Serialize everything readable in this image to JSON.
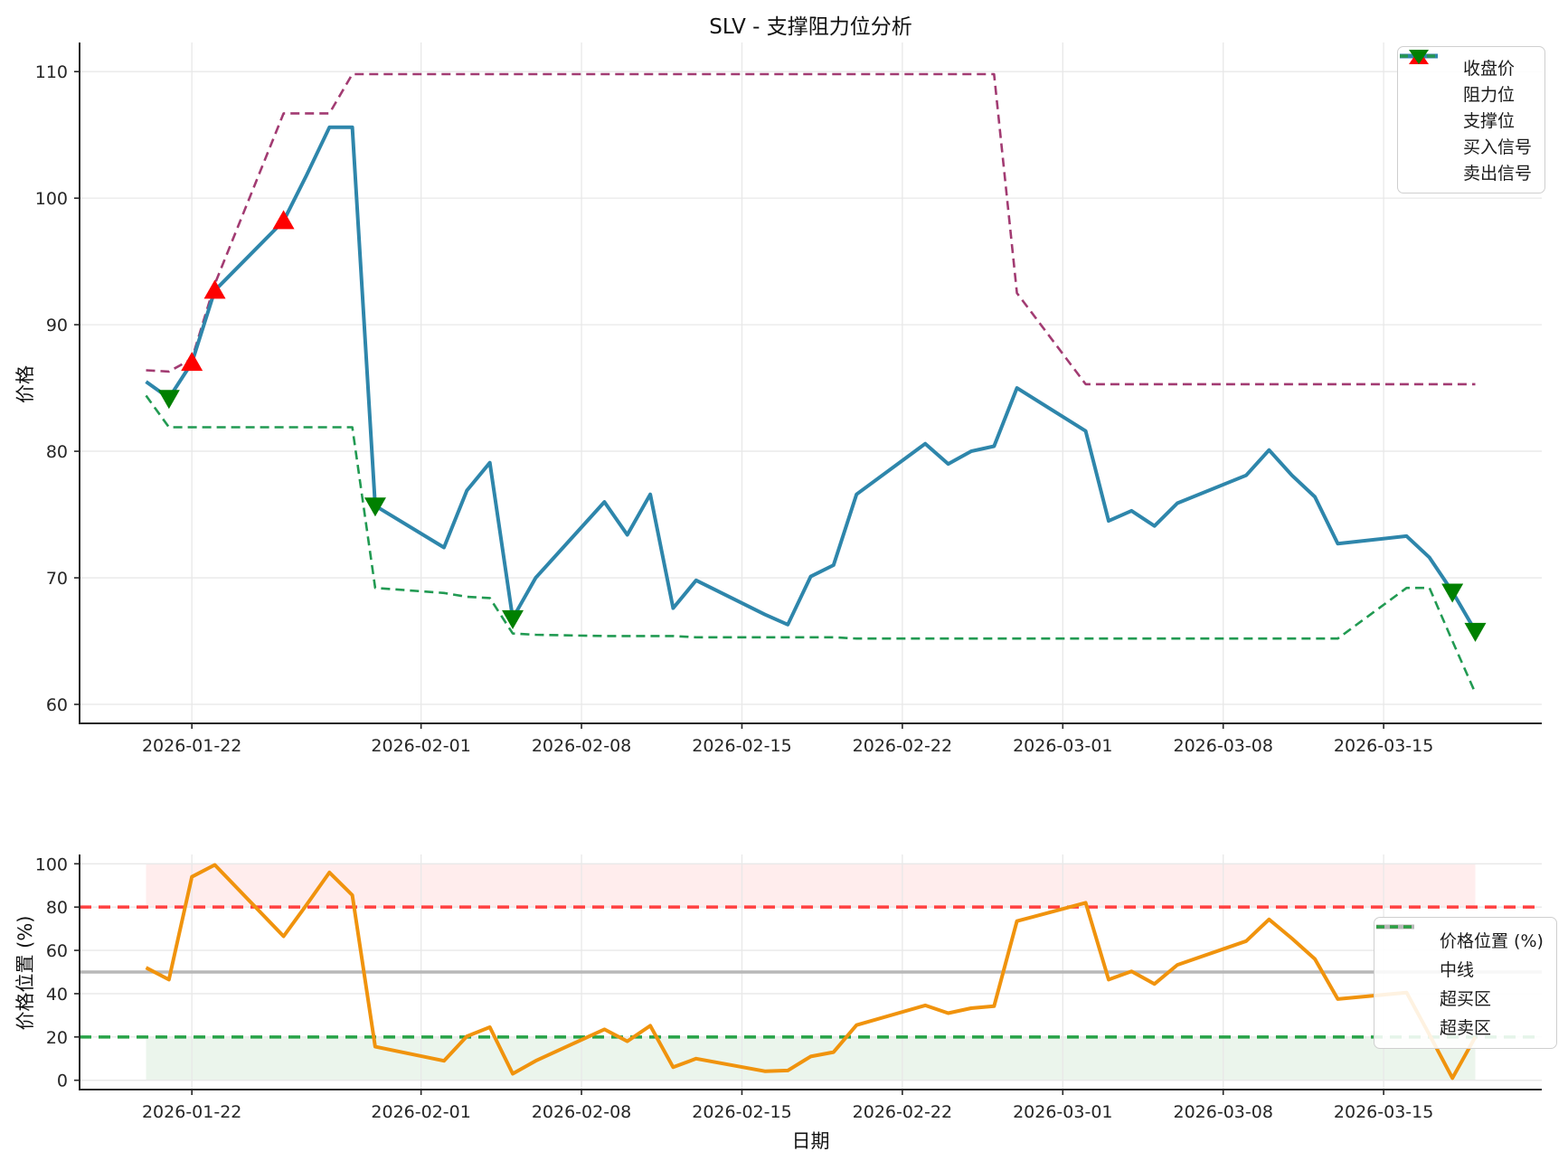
{
  "page": {
    "title": "SLV - 支撑阻力位分析",
    "xlabel": "日期"
  },
  "top_chart": {
    "ylabel": "价格",
    "yticks": [
      60,
      70,
      80,
      90,
      100,
      110
    ],
    "xtick_labels": [
      "2026-01-22",
      "2026-02-01",
      "2026-02-08",
      "2026-02-15",
      "2026-02-22",
      "2026-03-01",
      "2026-03-08",
      "2026-03-15"
    ],
    "legend": [
      {
        "label": "收盘价",
        "type": "line",
        "color": "#2E86AB"
      },
      {
        "label": "阻力位",
        "type": "dash",
        "color": "#A23B72"
      },
      {
        "label": "支撑位",
        "type": "dash",
        "color": "#219a52"
      },
      {
        "label": "买入信号",
        "type": "tri-up",
        "color": "#fe0000"
      },
      {
        "label": "卖出信号",
        "type": "tri-down",
        "color": "#008000"
      }
    ]
  },
  "bottom_chart": {
    "ylabel": "价格位置 (%)",
    "yticks": [
      0,
      20,
      40,
      60,
      80,
      100
    ],
    "xtick_labels": [
      "2026-01-22",
      "2026-02-01",
      "2026-02-08",
      "2026-02-15",
      "2026-02-22",
      "2026-03-01",
      "2026-03-08",
      "2026-03-15"
    ],
    "legend": [
      {
        "label": "价格位置 (%)",
        "type": "line",
        "color": "#f0930d"
      },
      {
        "label": "中线",
        "type": "line",
        "color": "#b8b8b8"
      },
      {
        "label": "超买区",
        "type": "dash",
        "color": "#ff4040"
      },
      {
        "label": "超卖区",
        "type": "dash",
        "color": "#28a348"
      }
    ]
  },
  "chart_data": [
    {
      "type": "line",
      "title": "SLV - 支撑阻力位分析",
      "ylabel": "价格",
      "ylim": [
        58.5,
        112.3
      ],
      "grid": true,
      "legend_position": "upper right",
      "x": [
        "2026-01-20",
        "2026-01-21",
        "2026-01-22",
        "2026-01-23",
        "2026-01-26",
        "2026-01-27",
        "2026-01-28",
        "2026-01-29",
        "2026-01-30",
        "2026-02-02",
        "2026-02-03",
        "2026-02-04",
        "2026-02-05",
        "2026-02-06",
        "2026-02-09",
        "2026-02-10",
        "2026-02-11",
        "2026-02-12",
        "2026-02-13",
        "2026-02-16",
        "2026-02-17",
        "2026-02-18",
        "2026-02-19",
        "2026-02-20",
        "2026-02-23",
        "2026-02-24",
        "2026-02-25",
        "2026-02-26",
        "2026-02-27",
        "2026-03-02",
        "2026-03-03",
        "2026-03-04",
        "2026-03-05",
        "2026-03-06",
        "2026-03-09",
        "2026-03-10",
        "2026-03-11",
        "2026-03-12",
        "2026-03-13",
        "2026-03-16",
        "2026-03-17",
        "2026-03-18",
        "2026-03-19"
      ],
      "series": [
        {
          "name": "收盘价",
          "color": "#2E86AB",
          "style": "solid",
          "width": 4,
          "values": [
            85.5,
            84.2,
            87.0,
            92.7,
            98.2,
            101.8,
            105.6,
            105.6,
            75.7,
            72.4,
            76.9,
            79.1,
            66.8,
            70.0,
            76.0,
            73.4,
            76.6,
            67.6,
            69.8,
            67.1,
            66.3,
            70.1,
            71.0,
            76.6,
            80.6,
            79.0,
            80.0,
            80.4,
            85.0,
            81.6,
            74.5,
            75.3,
            74.1,
            75.9,
            78.1,
            80.1,
            78.1,
            76.4,
            72.7,
            73.3,
            71.6,
            68.9,
            65.8
          ]
        },
        {
          "name": "阻力位",
          "color": "#A23B72",
          "style": "dashed",
          "width": 2.6,
          "values": [
            86.4,
            86.3,
            87.3,
            93.2,
            106.7,
            106.7,
            106.7,
            109.8,
            109.8,
            109.8,
            109.8,
            109.8,
            109.8,
            109.8,
            109.8,
            109.8,
            109.8,
            109.8,
            109.8,
            109.8,
            109.8,
            109.8,
            109.8,
            109.8,
            109.8,
            109.8,
            109.8,
            109.8,
            92.5,
            85.3,
            85.3,
            85.3,
            85.3,
            85.3,
            85.3,
            85.3,
            85.3,
            85.3,
            85.3,
            85.3,
            85.3,
            85.3,
            85.3
          ]
        },
        {
          "name": "支撑位",
          "color": "#219a52",
          "style": "dashed",
          "width": 2.6,
          "values": [
            84.4,
            81.9,
            81.9,
            81.9,
            81.9,
            81.9,
            81.9,
            81.9,
            69.2,
            68.8,
            68.5,
            68.4,
            65.6,
            65.5,
            65.4,
            65.4,
            65.4,
            65.4,
            65.3,
            65.3,
            65.3,
            65.3,
            65.3,
            65.2,
            65.2,
            65.2,
            65.2,
            65.2,
            65.2,
            65.2,
            65.2,
            65.2,
            65.2,
            65.2,
            65.2,
            65.2,
            65.2,
            65.2,
            65.2,
            69.2,
            69.2,
            65.0,
            60.9
          ]
        }
      ],
      "signals": {
        "buy": {
          "name": "买入信号",
          "color": "#fe0000",
          "marker": "triangle-up",
          "points": [
            {
              "date": "2026-01-22",
              "value": 87.0
            },
            {
              "date": "2026-01-23",
              "value": 92.7
            },
            {
              "date": "2026-01-26",
              "value": 98.2
            }
          ]
        },
        "sell": {
          "name": "卖出信号",
          "color": "#008000",
          "marker": "triangle-down",
          "points": [
            {
              "date": "2026-01-21",
              "value": 84.2
            },
            {
              "date": "2026-01-30",
              "value": 75.7
            },
            {
              "date": "2026-02-05",
              "value": 66.8
            },
            {
              "date": "2026-03-18",
              "value": 68.9
            },
            {
              "date": "2026-03-19",
              "value": 65.8
            }
          ]
        }
      }
    },
    {
      "type": "line",
      "ylabel": "价格位置 (%)",
      "xlabel": "日期",
      "ylim": [
        -4.3,
        104.3
      ],
      "grid": true,
      "legend_position": "right",
      "x": [
        "2026-01-20",
        "2026-01-21",
        "2026-01-22",
        "2026-01-23",
        "2026-01-26",
        "2026-01-27",
        "2026-01-28",
        "2026-01-29",
        "2026-01-30",
        "2026-02-02",
        "2026-02-03",
        "2026-02-04",
        "2026-02-05",
        "2026-02-06",
        "2026-02-09",
        "2026-02-10",
        "2026-02-11",
        "2026-02-12",
        "2026-02-13",
        "2026-02-16",
        "2026-02-17",
        "2026-02-18",
        "2026-02-19",
        "2026-02-20",
        "2026-02-23",
        "2026-02-24",
        "2026-02-25",
        "2026-02-26",
        "2026-02-27",
        "2026-03-02",
        "2026-03-03",
        "2026-03-04",
        "2026-03-05",
        "2026-03-06",
        "2026-03-09",
        "2026-03-10",
        "2026-03-11",
        "2026-03-12",
        "2026-03-13",
        "2026-03-16",
        "2026-03-17",
        "2026-03-18",
        "2026-03-19"
      ],
      "series": [
        {
          "name": "价格位置 (%)",
          "color": "#f0930d",
          "style": "solid",
          "width": 4,
          "values": [
            52,
            46.5,
            94,
            99.5,
            66.5,
            81,
            96,
            85.5,
            15.5,
            9,
            20.3,
            24.5,
            3,
            9,
            23.5,
            18,
            25.2,
            6,
            10,
            4.2,
            4.5,
            11,
            13,
            25.5,
            34.6,
            31,
            33.3,
            34.2,
            73.5,
            82,
            46.5,
            50.3,
            44.5,
            53.3,
            64.3,
            74.3,
            65.5,
            56,
            37.5,
            40.5,
            21,
            1,
            20
          ]
        }
      ],
      "reference_lines": [
        {
          "name": "中线",
          "value": 50,
          "color": "#b8b8b8",
          "style": "solid",
          "width": 3.5
        },
        {
          "name": "超买区",
          "value": 80,
          "color": "#ff4040",
          "style": "dashed",
          "width": 3.5
        },
        {
          "name": "超卖区",
          "value": 20,
          "color": "#28a348",
          "style": "dashed",
          "width": 3.5
        }
      ],
      "bands": [
        {
          "name": "overbought-zone",
          "from": 80,
          "to": 100,
          "color": "rgba(255,80,80,0.10)"
        },
        {
          "name": "oversold-zone",
          "from": 0,
          "to": 20,
          "color": "rgba(60,160,70,0.10)"
        }
      ]
    }
  ]
}
